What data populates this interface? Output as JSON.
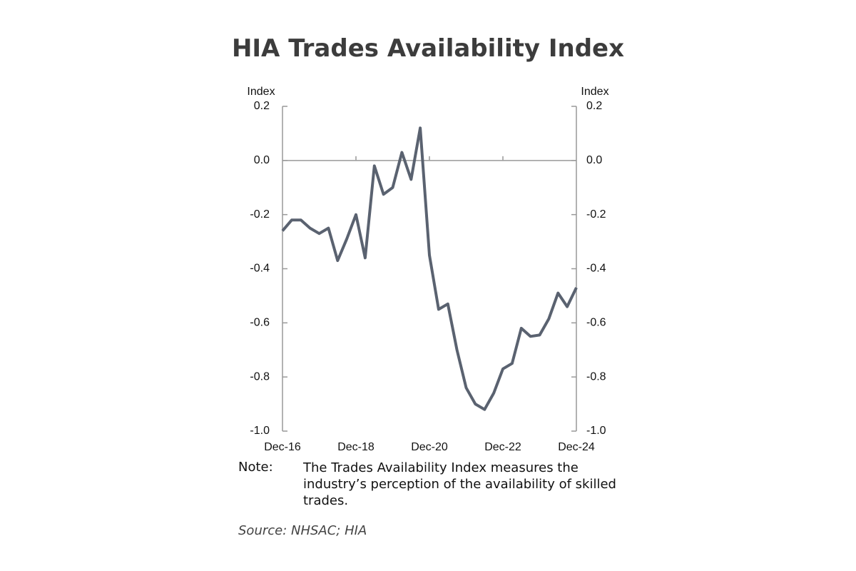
{
  "chart_data": {
    "type": "line",
    "title": "HIA Trades Availability Index",
    "y_label": "Index",
    "y2_label": "Index",
    "categories": [
      "Dec-16",
      null,
      null,
      null,
      null,
      null,
      null,
      null,
      "Dec-18",
      null,
      null,
      null,
      null,
      null,
      null,
      null,
      "Dec-20",
      null,
      null,
      null,
      null,
      null,
      null,
      null,
      "Dec-22",
      null,
      null,
      null,
      null,
      null,
      null,
      null,
      "Dec-24"
    ],
    "series": [
      {
        "name": "Trades Availability Index",
        "color": "#5a6270",
        "values": [
          -0.26,
          -0.22,
          -0.22,
          -0.25,
          -0.27,
          -0.25,
          -0.37,
          -0.29,
          -0.2,
          -0.36,
          -0.02,
          -0.125,
          -0.1,
          0.03,
          -0.07,
          0.12,
          -0.35,
          -0.55,
          -0.53,
          -0.7,
          -0.84,
          -0.9,
          -0.92,
          -0.86,
          -0.77,
          -0.75,
          -0.62,
          -0.65,
          -0.645,
          -0.585,
          -0.49,
          -0.54,
          -0.47
        ]
      }
    ],
    "ylim": [
      -1.0,
      0.2
    ],
    "yticks": [
      0.2,
      {
        "value": 0,
        "label": "0.0"
      },
      -0.2,
      -0.4,
      -0.6,
      -0.8,
      {
        "value": -1,
        "label": "-1.0"
      }
    ],
    "y2lim": [
      -1.0,
      0.2
    ],
    "y2ticks": [
      0.2,
      {
        "value": 0,
        "label": "0.0"
      },
      -0.2,
      -0.4,
      -0.6,
      -0.8,
      {
        "value": -1,
        "label": "-1.0"
      }
    ]
  },
  "note": {
    "label": "Note:",
    "text": "The Trades Availability Index measures the industry’s perception of the availability of skilled trades."
  },
  "source": "Source: NHSAC; HIA"
}
